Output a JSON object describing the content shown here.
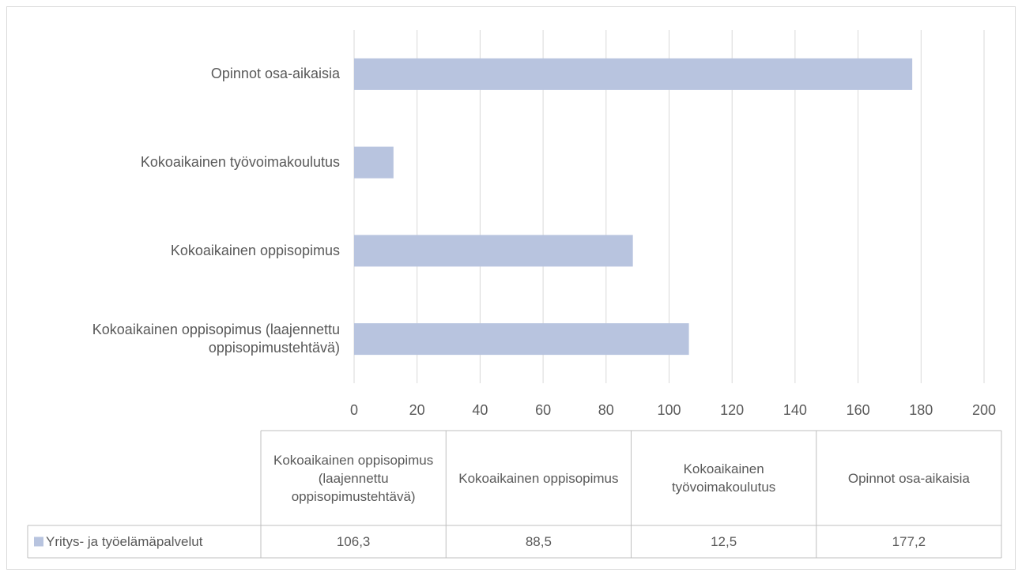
{
  "chart_data": {
    "type": "bar",
    "orientation": "horizontal",
    "categories": [
      "Kokoaikainen oppisopimus (laajennettu oppisopimustehtävä)",
      "Kokoaikainen oppisopimus",
      "Kokoaikainen työvoimakoulutus",
      "Opinnot osa-aikaisia"
    ],
    "series": [
      {
        "name": "Yritys- ja työelämäpalvelut",
        "color": "#b8c4df",
        "values": [
          106.3,
          88.5,
          12.5,
          177.2
        ],
        "value_labels": [
          "106,3",
          "88,5",
          "12,5",
          "177,2"
        ]
      }
    ],
    "xlim": [
      0,
      200
    ],
    "xticks": [
      0,
      20,
      40,
      60,
      80,
      100,
      120,
      140,
      160,
      180,
      200
    ],
    "grid": true,
    "data_table": true
  }
}
